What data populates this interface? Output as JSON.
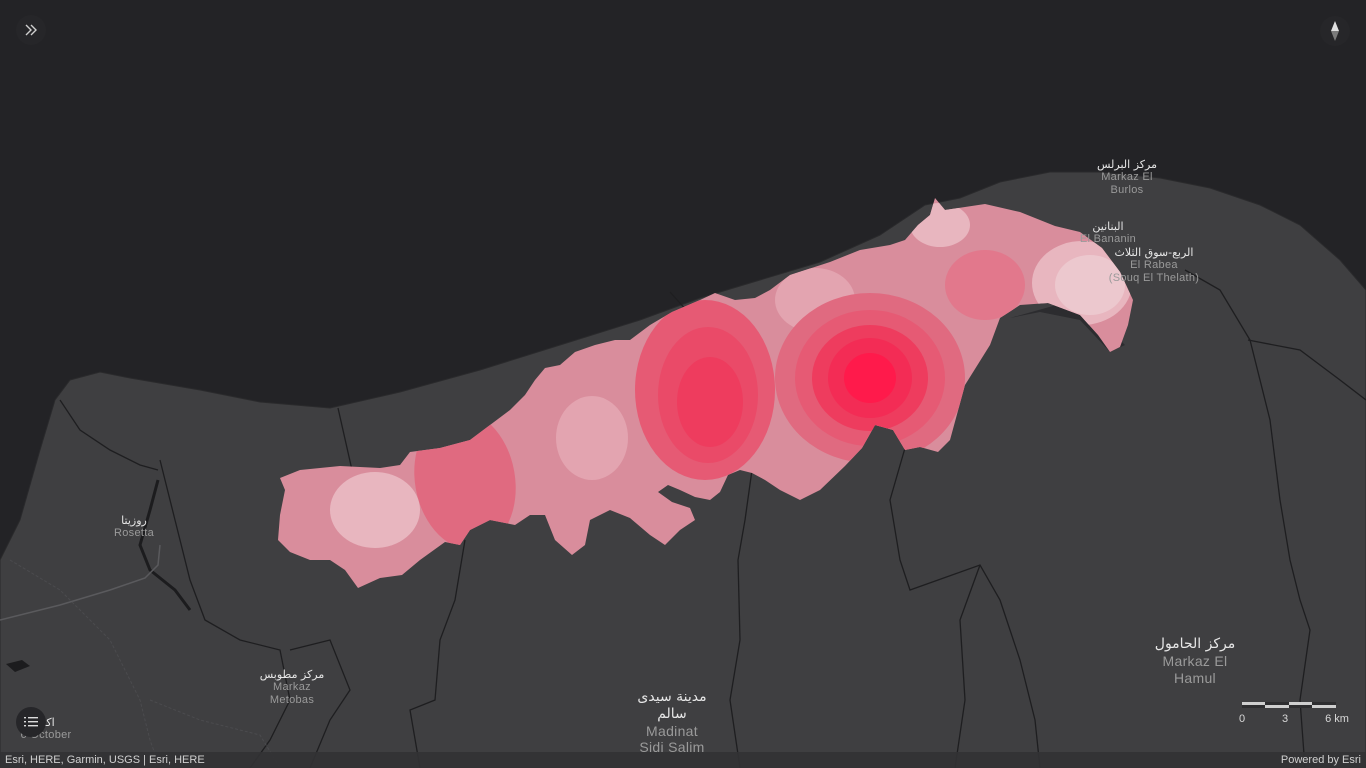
{
  "controls": {
    "expand_icon": "double-chevron-right-icon",
    "compass_icon": "compass-icon",
    "legend_icon": "list-icon"
  },
  "places": [
    {
      "id": "burlos",
      "ar": "مركز البرلس",
      "en": [
        "Markaz El",
        "Burlos"
      ]
    },
    {
      "id": "bananin",
      "ar": "البنانين",
      "en": [
        "El Bananin"
      ]
    },
    {
      "id": "rabea",
      "ar": "الربع-سوق الثلاث",
      "en": [
        "El Rabea",
        "(Souq El Thelath)"
      ]
    },
    {
      "id": "rosetta",
      "ar": "روزيتا",
      "en": [
        "Rosetta"
      ]
    },
    {
      "id": "metobas",
      "ar": "مركز مطوبس",
      "en": [
        "Markaz",
        "Metobas"
      ]
    },
    {
      "id": "sidi-salim",
      "ar": [
        "مدينة سيدى",
        "سالم"
      ],
      "en": [
        "Madinat",
        "Sidi Salim"
      ]
    },
    {
      "id": "hamul",
      "ar": "مركز الحامول",
      "en": [
        "Markaz El",
        "Hamul"
      ]
    },
    {
      "id": "october",
      "ar": "اكتو",
      "en": [
        "6 October"
      ]
    }
  ],
  "scale": {
    "labels": [
      "0",
      "3",
      "6 km"
    ]
  },
  "attribution": {
    "left": "Esri, HERE, Garmin, USGS | Esri, HERE",
    "right": "Powered by Esri"
  },
  "colors": {
    "water": "#232326",
    "land": "#3f3f41",
    "heat_low": "#d98d9c",
    "heat_mid": "#e4687f",
    "heat_high": "#ff1a4b"
  }
}
